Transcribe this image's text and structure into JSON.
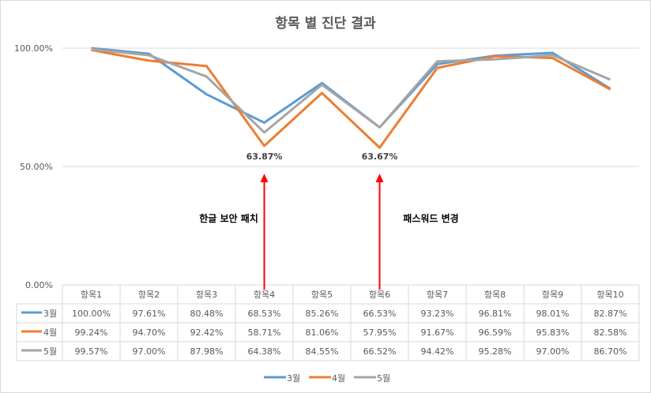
{
  "chart_data": {
    "type": "line",
    "title": "항목 별 진단 결과",
    "categories": [
      "항목1",
      "항목2",
      "항목3",
      "항목4",
      "항목5",
      "항목6",
      "항목7",
      "항목8",
      "항목9",
      "항목10"
    ],
    "ylim": [
      0,
      100
    ],
    "yticks": [
      "0.00%",
      "50.00%",
      "100.00%"
    ],
    "ytick_values": [
      0,
      50,
      100
    ],
    "grid": true,
    "legend_placement": "bottom",
    "data_table": true,
    "series": [
      {
        "name": "3월",
        "color": "#5b9bd5",
        "values": [
          100.0,
          97.61,
          80.48,
          68.53,
          85.26,
          66.53,
          93.23,
          96.81,
          98.01,
          82.87
        ],
        "labels": [
          "100.00%",
          "97.61%",
          "80.48%",
          "68.53%",
          "85.26%",
          "66.53%",
          "93.23%",
          "96.81%",
          "98.01%",
          "82.87%"
        ]
      },
      {
        "name": "4월",
        "color": "#ed7d31",
        "values": [
          99.24,
          94.7,
          92.42,
          58.71,
          81.06,
          57.95,
          91.67,
          96.59,
          95.83,
          82.58
        ],
        "labels": [
          "99.24%",
          "94.70%",
          "92.42%",
          "58.71%",
          "81.06%",
          "57.95%",
          "91.67%",
          "96.59%",
          "95.83%",
          "82.58%"
        ]
      },
      {
        "name": "5월",
        "color": "#a5a5a5",
        "values": [
          99.57,
          97.0,
          87.98,
          64.38,
          84.55,
          66.52,
          94.42,
          95.28,
          97.0,
          86.7
        ],
        "labels": [
          "99.57%",
          "97.00%",
          "87.98%",
          "64.38%",
          "84.55%",
          "66.52%",
          "94.42%",
          "95.28%",
          "97.00%",
          "86.70%"
        ]
      }
    ],
    "annotations": [
      {
        "category": "항목4",
        "value_text": "63.87%",
        "label": "한글 보안 패치",
        "arrow_color": "#ff0000"
      },
      {
        "category": "항목6",
        "value_text": "63.67%",
        "label": "패스워드 변경",
        "arrow_color": "#ff0000"
      }
    ]
  }
}
